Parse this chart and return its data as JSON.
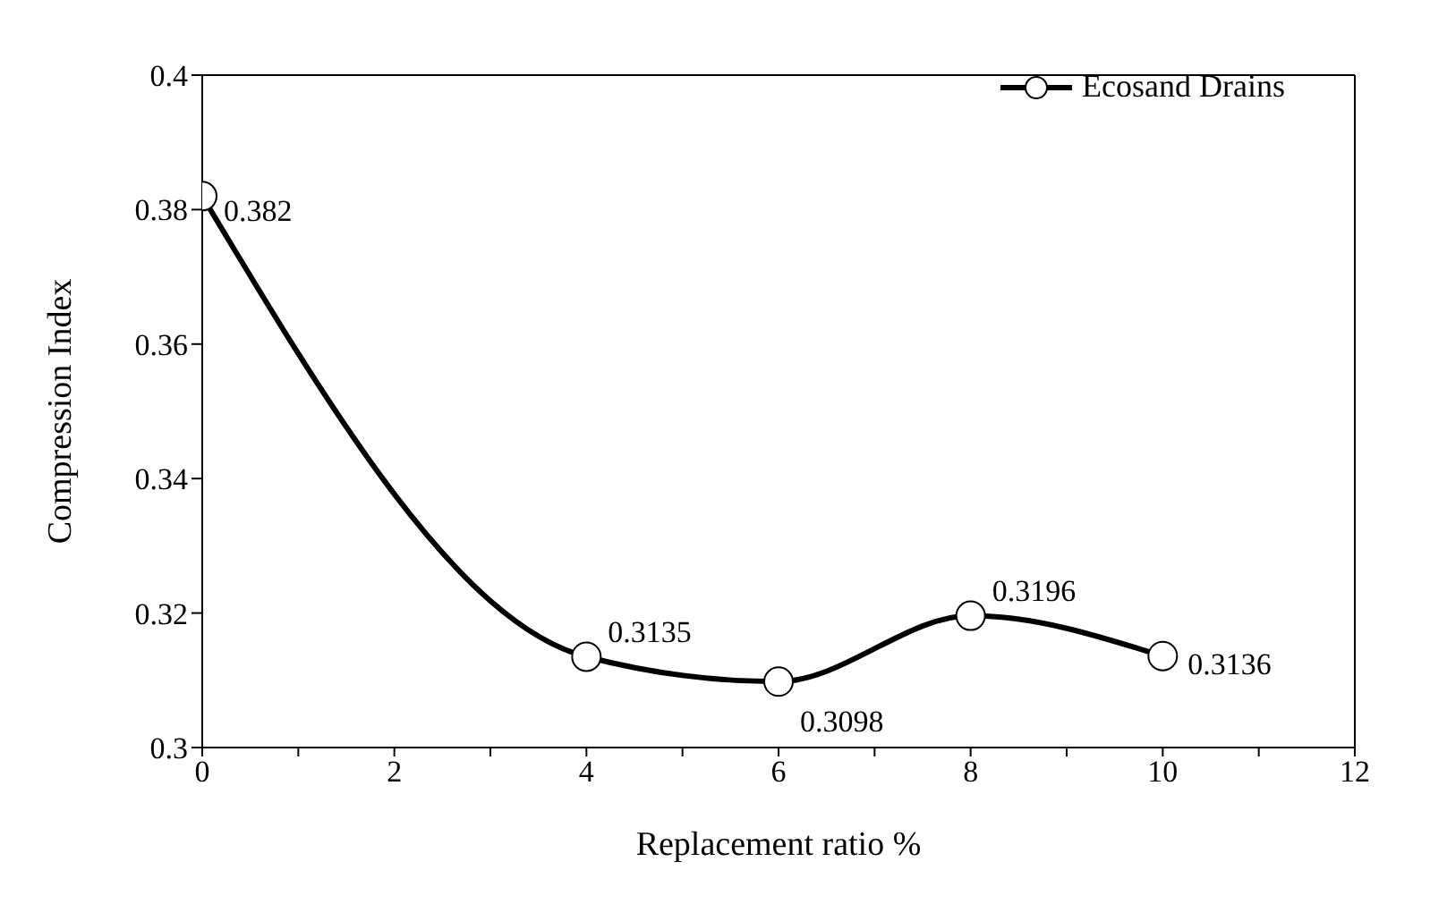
{
  "chart_data": {
    "type": "line",
    "xlabel": "Replacement ratio %",
    "ylabel": "Compression Index",
    "x": [
      0,
      4,
      6,
      8,
      10
    ],
    "series": [
      {
        "name": "Ecosand Drains",
        "color": "#000000",
        "values": [
          0.382,
          0.3135,
          0.3098,
          0.3196,
          0.3136
        ]
      }
    ],
    "xlim": [
      0,
      12
    ],
    "xticks": [
      0,
      {
        "value": 1,
        "label": null
      },
      2,
      {
        "value": 3,
        "label": null
      },
      4,
      {
        "value": 5,
        "label": null
      },
      6,
      {
        "value": 7,
        "label": null
      },
      8,
      {
        "value": 9,
        "label": null
      },
      10,
      {
        "value": 11,
        "label": null
      },
      12
    ],
    "ylim": [
      0.3,
      0.4
    ],
    "yticks": [
      0.3,
      0.32,
      0.34,
      0.36,
      0.38,
      0.4
    ],
    "grid": false,
    "legend": "top right",
    "marker": "circle",
    "line_style": "solid",
    "data_labels": true
  }
}
